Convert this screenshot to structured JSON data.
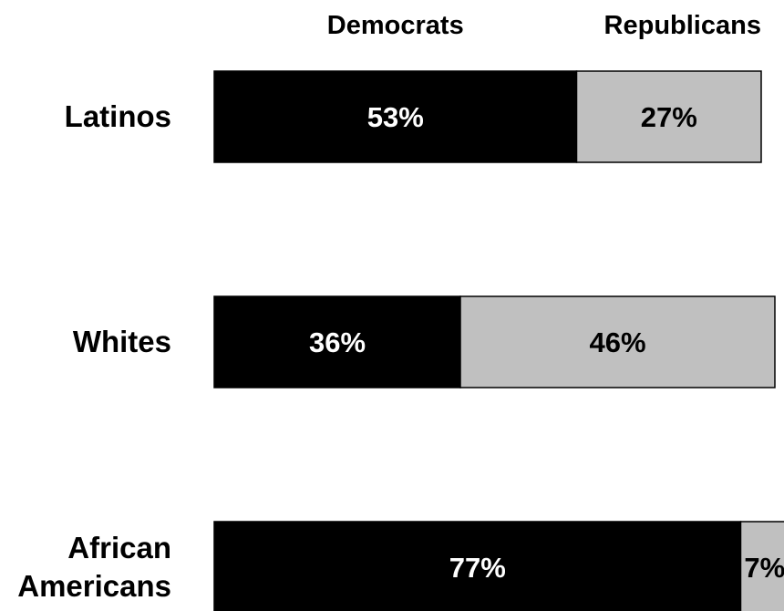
{
  "colors": {
    "democrats": "#000000",
    "republicans": "#c0c0c0",
    "label_on_dark": "#ffffff",
    "label_on_light": "#000000",
    "bar_outline": "#000000"
  },
  "chart_data": {
    "type": "bar",
    "orientation": "horizontal",
    "stacked": true,
    "categories": [
      "Latinos",
      "Whites",
      "African Americans"
    ],
    "category_lines": [
      [
        "Latinos"
      ],
      [
        "Whites"
      ],
      [
        "African",
        "Americans"
      ]
    ],
    "series": [
      {
        "name": "Democrats",
        "values": [
          53,
          36,
          77
        ],
        "labels": [
          "53%",
          "36%",
          "77%"
        ]
      },
      {
        "name": "Republicans",
        "values": [
          27,
          46,
          7
        ],
        "labels": [
          "27%",
          "46%",
          "7%"
        ]
      }
    ],
    "unit": "%",
    "grid": false,
    "legend": "top"
  }
}
